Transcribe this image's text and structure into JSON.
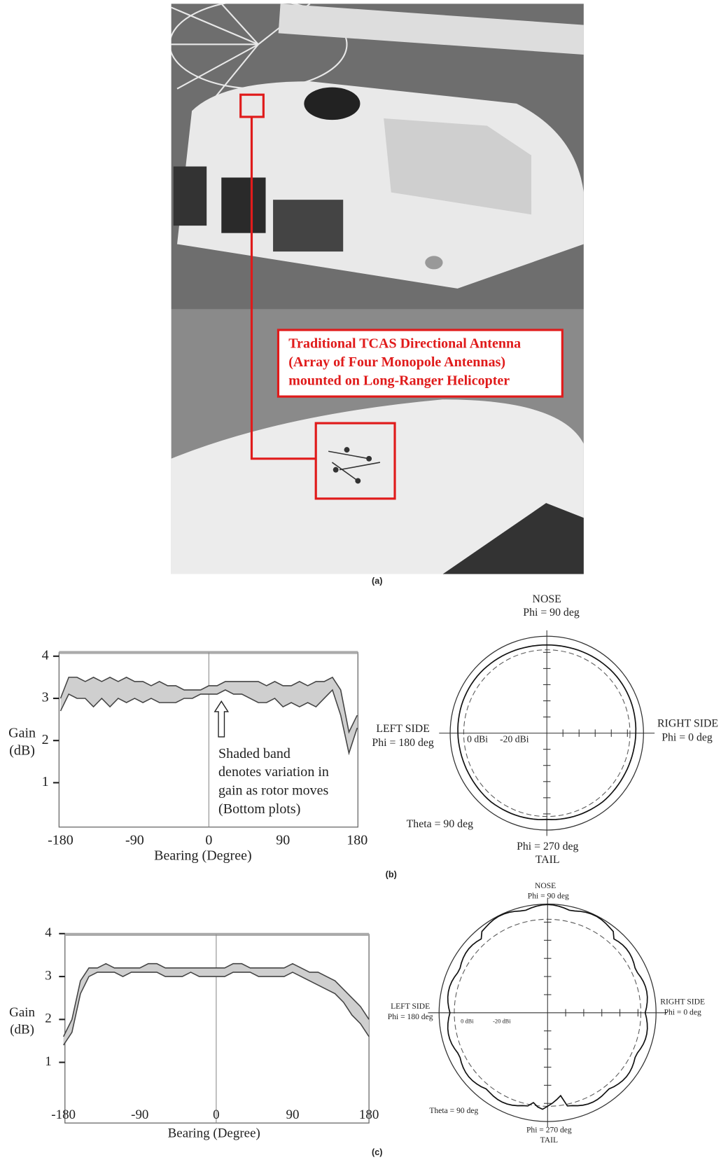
{
  "figure": {
    "panel_a": {
      "caption": "(a)",
      "annotation": [
        "Traditional TCAS Directional Antenna",
        "(Array of Four Monopole Antennas)",
        "mounted on Long-Ranger Helicopter"
      ]
    },
    "panel_b": {
      "caption": "(b)",
      "polar": {
        "nose": "NOSE",
        "nose_phi": "Phi = 90 deg",
        "left": "LEFT SIDE",
        "left_phi": "Phi = 180 deg",
        "right": "RIGHT SIDE",
        "right_phi": "Phi = 0 deg",
        "ring_0": "0 dBi",
        "ring_20": "-20 dBi",
        "theta": "Theta = 90 deg",
        "tail_phi": "Phi = 270 deg",
        "tail": "TAIL"
      }
    },
    "panel_c": {
      "caption": "(c)",
      "polar": {
        "nose": "NOSE",
        "nose_phi": "Phi = 90 deg",
        "left": "LEFT SIDE",
        "left_phi": "Phi = 180 deg",
        "right": "RIGHT SIDE",
        "right_phi": "Phi = 0 deg",
        "ring_0": "0 dBi",
        "ring_20": "-20 dBi",
        "theta": "Theta = 90 deg",
        "tail_phi": "Phi = 270 deg",
        "tail": "TAIL"
      }
    }
  },
  "chart_data": [
    {
      "type": "line",
      "xlabel": "Bearing (Degree)",
      "ylabel": [
        "Gain",
        "(dB)"
      ],
      "annotation": [
        "Shaded band",
        "denotes variation in",
        "gain as rotor moves",
        "(Bottom plots)"
      ],
      "x": [
        -180,
        -170,
        -160,
        -150,
        -140,
        -130,
        -120,
        -110,
        -100,
        -90,
        -80,
        -70,
        -60,
        -50,
        -40,
        -30,
        -20,
        -10,
        0,
        10,
        20,
        30,
        40,
        50,
        60,
        70,
        80,
        90,
        100,
        110,
        120,
        130,
        140,
        150,
        160,
        170,
        180
      ],
      "series": [
        {
          "color": "#444444",
          "values": [
            3.0,
            3.5,
            3.5,
            3.4,
            3.5,
            3.4,
            3.5,
            3.4,
            3.5,
            3.4,
            3.4,
            3.3,
            3.4,
            3.3,
            3.3,
            3.2,
            3.2,
            3.2,
            3.3,
            3.3,
            3.4,
            3.4,
            3.4,
            3.4,
            3.4,
            3.3,
            3.4,
            3.3,
            3.3,
            3.4,
            3.3,
            3.4,
            3.4,
            3.5,
            3.2,
            2.2,
            2.6
          ]
        },
        {
          "color": "#444444",
          "values": [
            2.7,
            3.1,
            3.0,
            3.0,
            2.8,
            3.0,
            2.8,
            3.0,
            2.9,
            3.0,
            2.9,
            3.0,
            2.9,
            2.9,
            2.9,
            3.0,
            3.0,
            3.1,
            3.1,
            3.1,
            3.2,
            3.1,
            3.1,
            3.0,
            2.9,
            2.9,
            3.0,
            2.8,
            2.9,
            2.8,
            2.9,
            2.8,
            3.0,
            3.2,
            2.6,
            1.7,
            2.3
          ]
        }
      ],
      "xlim": [
        -180,
        180
      ],
      "ylim": [
        0,
        4
      ],
      "xticks": [
        -180,
        -90,
        0,
        90,
        180
      ],
      "yticks": [
        1,
        2,
        3,
        4
      ]
    },
    {
      "type": "line",
      "xlabel": "Bearing (Degree)",
      "ylabel": [
        "Gain",
        "(dB)"
      ],
      "x": [
        -180,
        -170,
        -160,
        -150,
        -140,
        -130,
        -120,
        -110,
        -100,
        -90,
        -80,
        -70,
        -60,
        -50,
        -40,
        -30,
        -20,
        -10,
        0,
        10,
        20,
        30,
        40,
        50,
        60,
        70,
        80,
        90,
        100,
        110,
        120,
        130,
        140,
        150,
        160,
        170,
        180
      ],
      "series": [
        {
          "color": "#444444",
          "values": [
            1.6,
            2.0,
            2.9,
            3.2,
            3.2,
            3.3,
            3.2,
            3.2,
            3.2,
            3.2,
            3.3,
            3.3,
            3.2,
            3.2,
            3.2,
            3.2,
            3.2,
            3.2,
            3.2,
            3.2,
            3.3,
            3.3,
            3.2,
            3.2,
            3.2,
            3.2,
            3.2,
            3.3,
            3.2,
            3.1,
            3.1,
            3.0,
            2.9,
            2.7,
            2.5,
            2.3,
            2.0
          ]
        },
        {
          "color": "#444444",
          "values": [
            1.4,
            1.7,
            2.6,
            3.0,
            3.1,
            3.1,
            3.1,
            3.0,
            3.1,
            3.1,
            3.1,
            3.1,
            3.0,
            3.0,
            3.0,
            3.1,
            3.0,
            3.0,
            3.0,
            3.0,
            3.1,
            3.1,
            3.1,
            3.0,
            3.0,
            3.0,
            3.0,
            3.1,
            3.0,
            2.9,
            2.8,
            2.7,
            2.6,
            2.4,
            2.1,
            1.9,
            1.6
          ]
        }
      ],
      "xlim": [
        -180,
        180
      ],
      "ylim": [
        0,
        4
      ],
      "xticks": [
        -180,
        -90,
        0,
        90,
        180
      ],
      "yticks": [
        1,
        2,
        3,
        4
      ]
    }
  ]
}
